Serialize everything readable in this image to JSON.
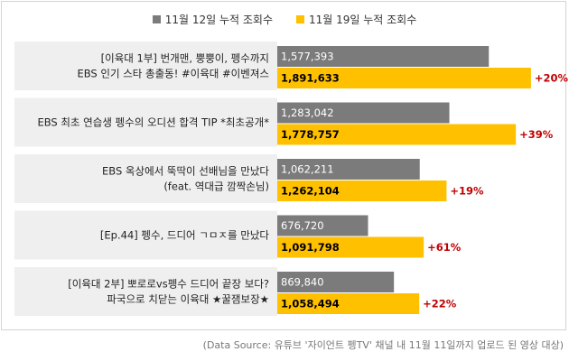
{
  "chart_data": {
    "type": "bar",
    "orientation": "horizontal",
    "categories": [
      [
        "[이육대 1부] 번개맨, 뿡뿡이, 펭수까지",
        "EBS 인기 스타 총출동! #이육대 #이벤져스"
      ],
      [
        "EBS 최초 연습생 펭수의 오디션 합격 TIP *최초공개*"
      ],
      [
        "EBS 옥상에서 뚝딱이 선배님을 만났다",
        "(feat. 역대급 깜짝손님)"
      ],
      [
        "[Ep.44] 펭수, 드디어 ㄱㅁㅈ를 만났다"
      ],
      [
        "[이육대 2부] 뽀로로vs펭수 드디어 끝장 보다?",
        "파국으로 치닫는 이육대 ★꿀잼보장★"
      ]
    ],
    "series": [
      {
        "name": "11월 12일 누적 조회수",
        "color": "#7b7b7b",
        "values": [
          1577393,
          1283042,
          1062211,
          676720,
          869840
        ],
        "labels": [
          "1,577,393",
          "1,283,042",
          "1,062,211",
          "676,720",
          "869,840"
        ]
      },
      {
        "name": "11월 19일 누적 조회수",
        "color": "#ffc000",
        "values": [
          1891633,
          1778757,
          1262104,
          1091798,
          1058494
        ],
        "labels": [
          "1,891,633",
          "1,778,757",
          "1,262,104",
          "1,091,798",
          "1,058,494"
        ]
      }
    ],
    "growth_labels": [
      "+20%",
      "+39%",
      "+19%",
      "+61%",
      "+22%"
    ],
    "growth_color": "#c00000",
    "xlim": [
      0,
      2000000
    ],
    "grid": false,
    "legend": "top-center"
  },
  "source_note": "(Data Source: 유튜브 '자이언트 펭TV' 채널 내 11월 11일까지 업로드 된 영상 대상)"
}
